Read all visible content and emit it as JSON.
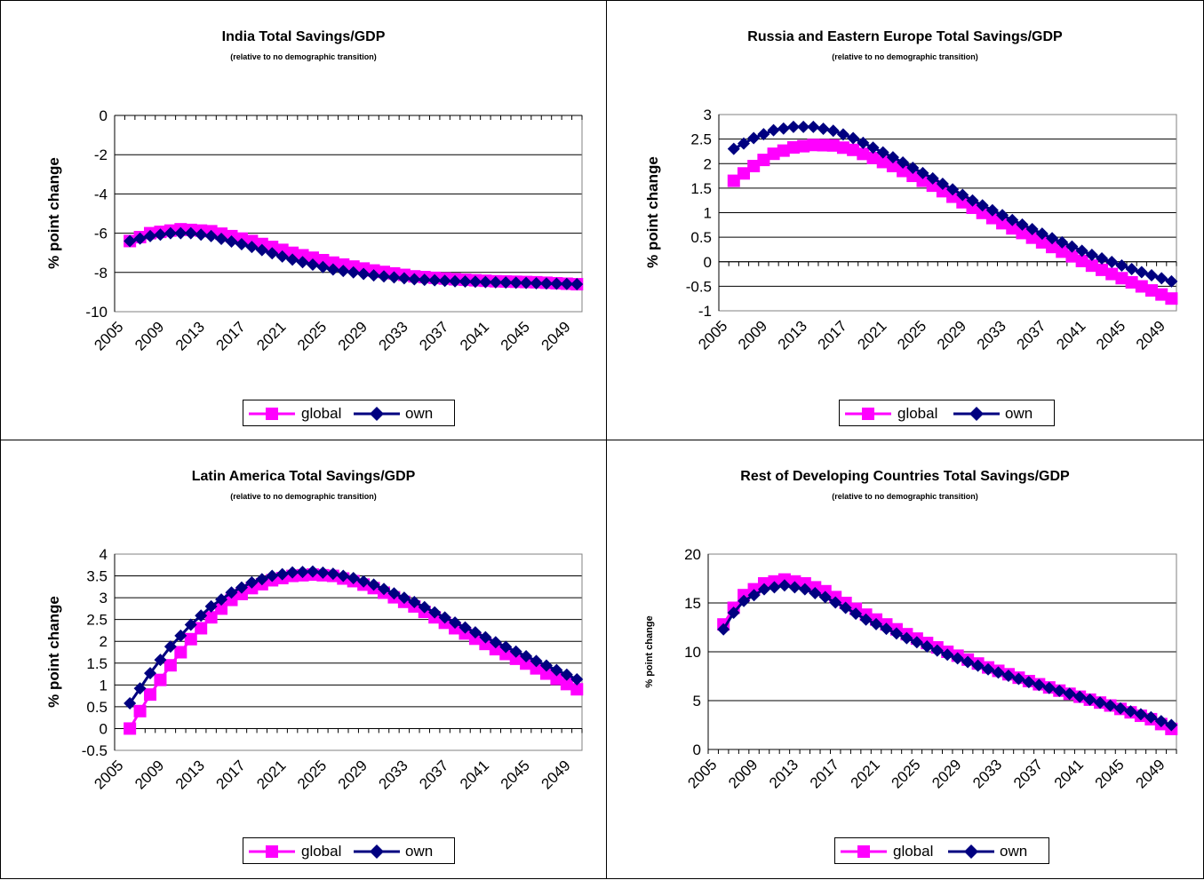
{
  "colors": {
    "global": "#ff00ff",
    "own": "#000080"
  },
  "legend": {
    "global": "global",
    "own": "own"
  },
  "chart_data": [
    {
      "type": "line",
      "title": "India Total Savings/GDP",
      "subtitle": "(relative to no demographic transition)",
      "ylabel": "% point change",
      "xlabel": "",
      "ylim": [
        -10,
        0
      ],
      "ytick_step": 2,
      "yticks": [
        "-10",
        "-8",
        "-6",
        "-4",
        "-2",
        "0"
      ],
      "x_start": 2006,
      "x_end": 2050,
      "xticks": [
        "2005",
        "2009",
        "2013",
        "2017",
        "2021",
        "2025",
        "2029",
        "2033",
        "2037",
        "2041",
        "2045",
        "2049"
      ],
      "grid": true,
      "legend_position": "bottom",
      "series": [
        {
          "name": "global",
          "key": [
            [
              2006,
              -6.4
            ],
            [
              2008,
              -6.0
            ],
            [
              2011,
              -5.8
            ],
            [
              2014,
              -5.9
            ],
            [
              2018,
              -6.4
            ],
            [
              2022,
              -7.0
            ],
            [
              2026,
              -7.5
            ],
            [
              2030,
              -7.9
            ],
            [
              2034,
              -8.2
            ],
            [
              2038,
              -8.35
            ],
            [
              2042,
              -8.45
            ],
            [
              2046,
              -8.5
            ],
            [
              2050,
              -8.6
            ]
          ]
        },
        {
          "name": "own",
          "key": [
            [
              2006,
              -6.4
            ],
            [
              2008,
              -6.15
            ],
            [
              2010,
              -6.0
            ],
            [
              2012,
              -6.0
            ],
            [
              2014,
              -6.15
            ],
            [
              2018,
              -6.7
            ],
            [
              2022,
              -7.35
            ],
            [
              2026,
              -7.85
            ],
            [
              2030,
              -8.15
            ],
            [
              2034,
              -8.35
            ],
            [
              2038,
              -8.45
            ],
            [
              2042,
              -8.5
            ],
            [
              2046,
              -8.55
            ],
            [
              2050,
              -8.6
            ]
          ]
        }
      ]
    },
    {
      "type": "line",
      "title": "Russia and Eastern Europe Total Savings/GDP",
      "subtitle": "(relative to no demographic transition)",
      "ylabel": "% point change",
      "xlabel": "",
      "ylim": [
        -1,
        3
      ],
      "ytick_step": 0.5,
      "yticks": [
        "-1",
        "-0.5",
        "0",
        "0.5",
        "1",
        "1.5",
        "2",
        "2.5",
        "3"
      ],
      "x_start": 2006,
      "x_end": 2050,
      "xticks": [
        "2005",
        "2009",
        "2013",
        "2017",
        "2021",
        "2025",
        "2029",
        "2033",
        "2037",
        "2041",
        "2045",
        "2049"
      ],
      "grid": true,
      "legend_position": "bottom",
      "series": [
        {
          "name": "global",
          "key": [
            [
              2006,
              1.65
            ],
            [
              2008,
              1.95
            ],
            [
              2010,
              2.2
            ],
            [
              2012,
              2.33
            ],
            [
              2014,
              2.38
            ],
            [
              2016,
              2.37
            ],
            [
              2018,
              2.28
            ],
            [
              2022,
              1.95
            ],
            [
              2026,
              1.55
            ],
            [
              2030,
              1.1
            ],
            [
              2034,
              0.68
            ],
            [
              2038,
              0.3
            ],
            [
              2042,
              -0.08
            ],
            [
              2046,
              -0.42
            ],
            [
              2050,
              -0.75
            ]
          ]
        },
        {
          "name": "own",
          "key": [
            [
              2006,
              2.3
            ],
            [
              2008,
              2.52
            ],
            [
              2010,
              2.68
            ],
            [
              2012,
              2.75
            ],
            [
              2014,
              2.75
            ],
            [
              2016,
              2.67
            ],
            [
              2018,
              2.52
            ],
            [
              2022,
              2.13
            ],
            [
              2026,
              1.7
            ],
            [
              2030,
              1.25
            ],
            [
              2034,
              0.85
            ],
            [
              2038,
              0.48
            ],
            [
              2042,
              0.14
            ],
            [
              2046,
              -0.15
            ],
            [
              2050,
              -0.4
            ]
          ]
        }
      ]
    },
    {
      "type": "line",
      "title": "Latin America Total Savings/GDP",
      "subtitle": "(relative to no demographic transition)",
      "ylabel": "% point change",
      "xlabel": "",
      "ylim": [
        -0.5,
        4
      ],
      "ytick_step": 0.5,
      "yticks": [
        "-0.5",
        "0",
        "0.5",
        "1",
        "1.5",
        "2",
        "2.5",
        "3",
        "3.5",
        "4"
      ],
      "x_start": 2006,
      "x_end": 2050,
      "xticks": [
        "2005",
        "2009",
        "2013",
        "2017",
        "2021",
        "2025",
        "2029",
        "2033",
        "2037",
        "2041",
        "2045",
        "2049"
      ],
      "grid": true,
      "legend_position": "bottom",
      "series": [
        {
          "name": "global",
          "key": [
            [
              2006,
              0.0
            ],
            [
              2007,
              0.4
            ],
            [
              2008,
              0.78
            ],
            [
              2010,
              1.45
            ],
            [
              2012,
              2.05
            ],
            [
              2014,
              2.55
            ],
            [
              2016,
              2.95
            ],
            [
              2018,
              3.22
            ],
            [
              2020,
              3.4
            ],
            [
              2022,
              3.5
            ],
            [
              2024,
              3.53
            ],
            [
              2026,
              3.5
            ],
            [
              2028,
              3.38
            ],
            [
              2030,
              3.22
            ],
            [
              2034,
              2.8
            ],
            [
              2038,
              2.3
            ],
            [
              2042,
              1.82
            ],
            [
              2046,
              1.38
            ],
            [
              2050,
              0.9
            ]
          ]
        },
        {
          "name": "own",
          "key": [
            [
              2006,
              0.58
            ],
            [
              2007,
              0.92
            ],
            [
              2008,
              1.27
            ],
            [
              2010,
              1.88
            ],
            [
              2012,
              2.38
            ],
            [
              2014,
              2.8
            ],
            [
              2016,
              3.12
            ],
            [
              2018,
              3.35
            ],
            [
              2020,
              3.5
            ],
            [
              2022,
              3.58
            ],
            [
              2024,
              3.6
            ],
            [
              2026,
              3.55
            ],
            [
              2028,
              3.45
            ],
            [
              2030,
              3.3
            ],
            [
              2034,
              2.9
            ],
            [
              2038,
              2.43
            ],
            [
              2042,
              1.98
            ],
            [
              2046,
              1.55
            ],
            [
              2050,
              1.13
            ]
          ]
        }
      ]
    },
    {
      "type": "line",
      "title": "Rest of Developing Countries Total Savings/GDP",
      "subtitle": "(relative to no demographic transition)",
      "ylabel": "% point change",
      "xlabel": "",
      "ylim": [
        0,
        20
      ],
      "ytick_step": 5,
      "yticks": [
        "0",
        "5",
        "10",
        "15",
        "20"
      ],
      "x_start": 2006,
      "x_end": 2050,
      "xticks": [
        "2005",
        "2009",
        "2013",
        "2017",
        "2021",
        "2025",
        "2029",
        "2033",
        "2037",
        "2041",
        "2045",
        "2049"
      ],
      "grid": true,
      "legend_position": "bottom",
      "series": [
        {
          "name": "global",
          "key": [
            [
              2006,
              12.8
            ],
            [
              2007,
              14.5
            ],
            [
              2008,
              15.8
            ],
            [
              2010,
              17.0
            ],
            [
              2012,
              17.4
            ],
            [
              2014,
              17.0
            ],
            [
              2016,
              16.2
            ],
            [
              2018,
              15.0
            ],
            [
              2020,
              13.8
            ],
            [
              2024,
              11.8
            ],
            [
              2028,
              10.0
            ],
            [
              2032,
              8.4
            ],
            [
              2036,
              7.0
            ],
            [
              2040,
              5.7
            ],
            [
              2044,
              4.5
            ],
            [
              2048,
              3.1
            ],
            [
              2050,
              2.1
            ]
          ]
        },
        {
          "name": "own",
          "key": [
            [
              2006,
              12.3
            ],
            [
              2007,
              14.0
            ],
            [
              2008,
              15.2
            ],
            [
              2010,
              16.4
            ],
            [
              2012,
              16.8
            ],
            [
              2014,
              16.4
            ],
            [
              2016,
              15.6
            ],
            [
              2018,
              14.5
            ],
            [
              2020,
              13.3
            ],
            [
              2024,
              11.4
            ],
            [
              2028,
              9.7
            ],
            [
              2032,
              8.2
            ],
            [
              2036,
              6.9
            ],
            [
              2040,
              5.7
            ],
            [
              2044,
              4.5
            ],
            [
              2048,
              3.3
            ],
            [
              2050,
              2.5
            ]
          ]
        }
      ]
    }
  ]
}
